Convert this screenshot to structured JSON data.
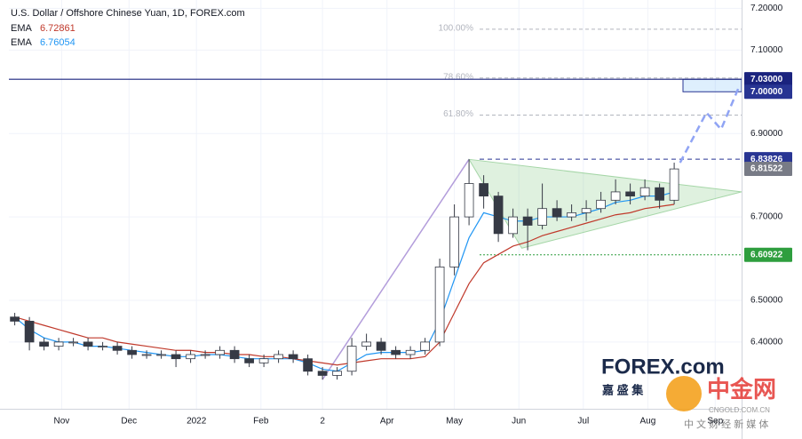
{
  "chart_data": {
    "type": "candlestick",
    "title": "U.S. Dollar / Offshore Chinese Yuan, 1D, FOREX.com",
    "up_color": "#ffffff",
    "down_color": "#363a45",
    "wick_color": "#363a45",
    "x": [
      2,
      7,
      12,
      17,
      22,
      27,
      32,
      37,
      42,
      47,
      52,
      57,
      62,
      67,
      72,
      77,
      82,
      87,
      92,
      97,
      102,
      107,
      112,
      117,
      122,
      127,
      132,
      137,
      142,
      147,
      152,
      157,
      162,
      167,
      172,
      177,
      182,
      187,
      192,
      197,
      202,
      207,
      212,
      217,
      222,
      227
    ],
    "open": [
      6.46,
      6.45,
      6.4,
      6.39,
      6.4,
      6.4,
      6.39,
      6.39,
      6.38,
      6.37,
      6.37,
      6.37,
      6.36,
      6.37,
      6.37,
      6.38,
      6.36,
      6.35,
      6.36,
      6.37,
      6.36,
      6.33,
      6.32,
      6.33,
      6.39,
      6.4,
      6.38,
      6.37,
      6.38,
      6.4,
      6.58,
      6.7,
      6.78,
      6.75,
      6.66,
      6.7,
      6.68,
      6.72,
      6.7,
      6.71,
      6.72,
      6.74,
      6.76,
      6.75,
      6.77,
      6.74
    ],
    "high": [
      6.47,
      6.46,
      6.41,
      6.41,
      6.41,
      6.41,
      6.4,
      6.4,
      6.39,
      6.38,
      6.38,
      6.38,
      6.38,
      6.38,
      6.39,
      6.39,
      6.37,
      6.37,
      6.38,
      6.38,
      6.37,
      6.34,
      6.34,
      6.41,
      6.42,
      6.41,
      6.39,
      6.39,
      6.41,
      6.6,
      6.73,
      6.838,
      6.8,
      6.76,
      6.72,
      6.72,
      6.78,
      6.74,
      6.73,
      6.74,
      6.76,
      6.79,
      6.78,
      6.79,
      6.78,
      6.83
    ],
    "low": [
      6.44,
      6.38,
      6.38,
      6.38,
      6.39,
      6.38,
      6.38,
      6.37,
      6.36,
      6.36,
      6.36,
      6.34,
      6.35,
      6.36,
      6.36,
      6.35,
      6.34,
      6.34,
      6.35,
      6.35,
      6.32,
      6.31,
      6.31,
      6.32,
      6.38,
      6.37,
      6.36,
      6.36,
      6.37,
      6.39,
      6.56,
      6.68,
      6.72,
      6.64,
      6.65,
      6.62,
      6.67,
      6.69,
      6.69,
      6.69,
      6.71,
      6.73,
      6.73,
      6.74,
      6.72,
      6.73
    ],
    "close": [
      6.45,
      6.4,
      6.39,
      6.4,
      6.4,
      6.39,
      6.39,
      6.38,
      6.37,
      6.37,
      6.37,
      6.36,
      6.37,
      6.37,
      6.38,
      6.36,
      6.35,
      6.36,
      6.37,
      6.36,
      6.33,
      6.32,
      6.33,
      6.39,
      6.4,
      6.38,
      6.37,
      6.38,
      6.4,
      6.58,
      6.7,
      6.78,
      6.75,
      6.66,
      6.7,
      6.68,
      6.72,
      6.7,
      6.71,
      6.72,
      6.74,
      6.76,
      6.75,
      6.77,
      6.74,
      6.815
    ],
    "series": [
      {
        "name": "EMA",
        "label": "6.76054",
        "color": "#2196f3",
        "values": [
          6.46,
          6.43,
          6.41,
          6.4,
          6.4,
          6.39,
          6.39,
          6.385,
          6.38,
          6.375,
          6.37,
          6.365,
          6.365,
          6.37,
          6.37,
          6.365,
          6.36,
          6.36,
          6.36,
          6.36,
          6.35,
          6.335,
          6.33,
          6.35,
          6.37,
          6.375,
          6.375,
          6.375,
          6.38,
          6.45,
          6.55,
          6.65,
          6.71,
          6.7,
          6.69,
          6.69,
          6.7,
          6.7,
          6.7,
          6.71,
          6.72,
          6.735,
          6.74,
          6.75,
          6.75,
          6.76
        ]
      },
      {
        "name": "EMA",
        "label": "6.72861",
        "color": "#c0392b",
        "values": [
          6.46,
          6.45,
          6.44,
          6.43,
          6.42,
          6.41,
          6.41,
          6.4,
          6.395,
          6.39,
          6.385,
          6.38,
          6.38,
          6.375,
          6.375,
          6.37,
          6.37,
          6.365,
          6.365,
          6.36,
          6.355,
          6.35,
          6.345,
          6.35,
          6.355,
          6.36,
          6.36,
          6.36,
          6.365,
          6.4,
          6.47,
          6.54,
          6.59,
          6.61,
          6.63,
          6.64,
          6.655,
          6.665,
          6.675,
          6.685,
          6.695,
          6.705,
          6.71,
          6.72,
          6.725,
          6.73
        ]
      }
    ],
    "xlim": [
      0,
      250
    ],
    "ylim": [
      6.24,
      7.22
    ],
    "xticks": [
      {
        "value": 18,
        "label": "Nov"
      },
      {
        "value": 41,
        "label": "Dec"
      },
      {
        "value": 64,
        "label": "2022"
      },
      {
        "value": 86,
        "label": "Feb"
      },
      {
        "value": 107,
        "label": "2"
      },
      {
        "value": 129,
        "label": "Apr"
      },
      {
        "value": 152,
        "label": "May"
      },
      {
        "value": 174,
        "label": "Jun"
      },
      {
        "value": 196,
        "label": "Jul"
      },
      {
        "value": 218,
        "label": "Aug"
      },
      {
        "value": 241,
        "label": "Sep"
      }
    ],
    "yticks": [
      {
        "value": 7.2,
        "label": "7.20000"
      },
      {
        "value": 7.1,
        "label": "7.10000"
      },
      {
        "value": 6.9,
        "label": "6.90000"
      },
      {
        "value": 6.7,
        "label": "6.70000"
      },
      {
        "value": 6.5,
        "label": "6.50000"
      },
      {
        "value": 6.4,
        "label": "6.40000"
      }
    ],
    "fib_levels": [
      {
        "value": 7.15,
        "label": "100.00%"
      },
      {
        "value": 7.033,
        "label": "78.60%"
      },
      {
        "value": 6.944,
        "label": "61.80%"
      }
    ],
    "price_labels": [
      {
        "value": 7.03,
        "label": "7.03000",
        "color": "#1a237e",
        "line": "solid"
      },
      {
        "value": 7.0,
        "label": "7.00000",
        "color": "#283593",
        "line": "none"
      },
      {
        "value": 6.83826,
        "label": "6.83826",
        "color": "#283593",
        "line": "dashed"
      },
      {
        "value": 6.81522,
        "label": "6.81522",
        "color": "#787b86",
        "line": "none"
      },
      {
        "value": 6.60922,
        "label": "6.60922",
        "color": "#2e9e3e",
        "line": "dotted"
      }
    ],
    "target_box": {
      "x": [
        230,
        250
      ],
      "y": [
        7.0,
        7.03
      ]
    },
    "rally_line": {
      "x": [
        107,
        157
      ],
      "y": [
        6.31,
        6.838
      ]
    },
    "triangle": {
      "x": [
        157,
        175,
        250
      ],
      "y": [
        6.838,
        6.625,
        6.76
      ]
    },
    "projection": {
      "x": [
        229,
        238,
        243,
        249
      ],
      "y": [
        6.83,
        6.95,
        6.91,
        7.01
      ]
    }
  },
  "watermark": {
    "brand": "FOREX.com",
    "brand_sub": "嘉 盛 集",
    "site": "中金网",
    "site_url": "CNGOLD.COM.CN",
    "site_sub": "中 文 财 经 新 媒 体"
  }
}
